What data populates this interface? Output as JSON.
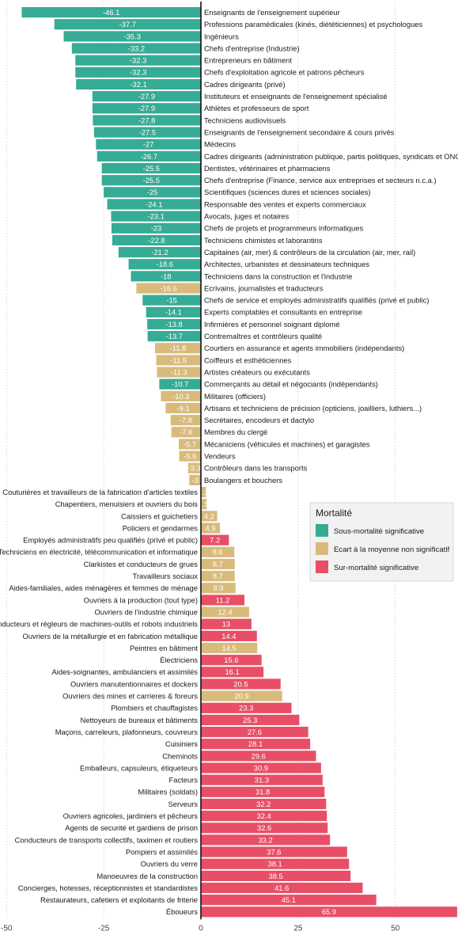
{
  "chart_data": {
    "type": "bar",
    "orientation": "horizontal",
    "xlim": [
      -50,
      65.9
    ],
    "x_ticks": [
      -50,
      -25,
      0,
      25,
      50
    ],
    "grid": "vertical dotted",
    "legend_position": "right",
    "legend": {
      "title": "Mortalité",
      "entries": [
        {
          "key": "sous",
          "label": "Sous-mortalité significative",
          "color": "#36ab95"
        },
        {
          "key": "ecart",
          "label": "Ecart à la moyenne non significatif",
          "color": "#d8bb7b"
        },
        {
          "key": "sur",
          "label": "Sur-mortalité significative",
          "color": "#e84f66"
        }
      ]
    },
    "bars": [
      {
        "label": "Enseignants de l'enseignement supérieur",
        "value": -46.1,
        "group": "sous"
      },
      {
        "label": "Professions paramédicales (kinés, diététiciennes) et psychologues",
        "value": -37.7,
        "group": "sous"
      },
      {
        "label": "Ingénieurs",
        "value": -35.3,
        "group": "sous"
      },
      {
        "label": "Chefs d'entreprise (Industrie)",
        "value": -33.2,
        "group": "sous"
      },
      {
        "label": "Entrepreneurs en bâtiment",
        "value": -32.3,
        "group": "sous"
      },
      {
        "label": "Chefs d'exploitation agricole et patrons pêcheurs",
        "value": -32.3,
        "group": "sous"
      },
      {
        "label": "Cadres dirigeants (privé)",
        "value": -32.1,
        "group": "sous"
      },
      {
        "label": "Instituteurs et enseignants de l'enseignement spécialisé",
        "value": -27.9,
        "group": "sous"
      },
      {
        "label": "Athlètes et professeurs de sport",
        "value": -27.9,
        "group": "sous"
      },
      {
        "label": "Techniciens audiovisuels",
        "value": -27.8,
        "group": "sous"
      },
      {
        "label": "Enseignants de l'enseignement secondaire & cours privés",
        "value": -27.5,
        "group": "sous"
      },
      {
        "label": "Médecins",
        "value": -27,
        "group": "sous"
      },
      {
        "label": "Cadres dirigeants (administration publique, partis politiques, syndicats et ONG)",
        "value": -26.7,
        "group": "sous"
      },
      {
        "label": "Dentistes, vétérinaires et pharmaciens",
        "value": -25.5,
        "group": "sous"
      },
      {
        "label": "Chefs d'entreprise (Finance, service aux entreprises et secteurs n.c.a.)",
        "value": -25.5,
        "group": "sous"
      },
      {
        "label": "Scientifiques (sciences dures et sciences sociales)",
        "value": -25,
        "group": "sous"
      },
      {
        "label": "Responsable des ventes et experts commerciaux",
        "value": -24.1,
        "group": "sous"
      },
      {
        "label": "Avocats, juges et notaires",
        "value": -23.1,
        "group": "sous"
      },
      {
        "label": "Chefs de projets et programmeurs informatiques",
        "value": -23,
        "group": "sous"
      },
      {
        "label": "Techniciens chimistes et laborantins",
        "value": -22.8,
        "group": "sous"
      },
      {
        "label": "Capitaines (air, mer) & contrôleurs de la circulation (air, mer, rail)",
        "value": -21.2,
        "group": "sous"
      },
      {
        "label": "Architectes, urbanistes et dessinateurs techniques",
        "value": -18.6,
        "group": "sous"
      },
      {
        "label": "Techniciens dans la construction et l'industrie",
        "value": -18,
        "group": "sous"
      },
      {
        "label": "Ecrivains, journalistes et traducteurs",
        "value": -16.6,
        "group": "ecart"
      },
      {
        "label": "Chefs de service et employés administratifs qualifiés (privé et public)",
        "value": -15,
        "group": "sous"
      },
      {
        "label": "Experts comptables et consultants en entreprise",
        "value": -14.1,
        "group": "sous"
      },
      {
        "label": "Infirmières et personnel soignant diplomé",
        "value": -13.8,
        "group": "sous"
      },
      {
        "label": "Contremaîtres et contrôleurs qualité",
        "value": -13.7,
        "group": "sous"
      },
      {
        "label": "Courtiers en assurance et agents immobiliers (indépendants)",
        "value": -11.8,
        "group": "ecart"
      },
      {
        "label": "Coiffeurs et esthéticiennes",
        "value": -11.5,
        "group": "ecart"
      },
      {
        "label": "Artistes créateurs ou exécutants",
        "value": -11.3,
        "group": "ecart"
      },
      {
        "label": "Commerçants au détail et négociants (indépendants)",
        "value": -10.7,
        "group": "sous"
      },
      {
        "label": "Militaires (officiers)",
        "value": -10.3,
        "group": "ecart"
      },
      {
        "label": "Artisans et techniciens de précision (opticiens, joailliers, luthiers...)",
        "value": -9.1,
        "group": "ecart"
      },
      {
        "label": "Secrétaires, encodeurs et dactylo",
        "value": -7.8,
        "group": "ecart"
      },
      {
        "label": "Membres du clergé",
        "value": -7.6,
        "group": "ecart"
      },
      {
        "label": "Mécaniciens (véhicules et machines) et garagistes",
        "value": -5.7,
        "group": "ecart"
      },
      {
        "label": "Vendeurs",
        "value": -5.6,
        "group": "ecart"
      },
      {
        "label": "Contrôleurs dans les transports",
        "value": -3.3,
        "group": "ecart"
      },
      {
        "label": "Boulangers et bouchers",
        "value": -3,
        "group": "ecart"
      },
      {
        "label": "Couturières et travailleurs de la fabrication d'articles textiles",
        "value": 1.3,
        "group": "ecart"
      },
      {
        "label": "Chapentiers, menuisiers et ouvriers du bois",
        "value": 1.5,
        "group": "ecart"
      },
      {
        "label": "Caissiers et guichetiers",
        "value": 4.2,
        "group": "ecart"
      },
      {
        "label": "Policiers et gendarmes",
        "value": 4.9,
        "group": "ecart"
      },
      {
        "label": "Employés administratifs peu qualifiés (privé et public)",
        "value": 7.2,
        "group": "sur"
      },
      {
        "label": "Techniciens en électricité, télécommunication et informatique",
        "value": 8.6,
        "group": "ecart"
      },
      {
        "label": "Clarkistes et conducteurs de grues",
        "value": 8.7,
        "group": "ecart"
      },
      {
        "label": "Travailleurs sociaux",
        "value": 8.7,
        "group": "ecart"
      },
      {
        "label": "Aides-familiales, aides ménagères et femmes de ménage",
        "value": 8.9,
        "group": "ecart"
      },
      {
        "label": "Ouvriers à la production (tout type)",
        "value": 11.2,
        "group": "sur"
      },
      {
        "label": "Ouvriers de l'industrie chimique",
        "value": 12.4,
        "group": "ecart"
      },
      {
        "label": "Conducteurs et régleurs de machines-outils et robots industriels",
        "value": 13,
        "group": "sur"
      },
      {
        "label": "Ouvriers de la métallurgie et en fabrication métallique",
        "value": 14.4,
        "group": "sur"
      },
      {
        "label": "Peintres en bâtiment",
        "value": 14.5,
        "group": "ecart"
      },
      {
        "label": "Électriciens",
        "value": 15.6,
        "group": "sur"
      },
      {
        "label": "Aides-soignantes, ambulanciers et assimilés",
        "value": 16.1,
        "group": "sur"
      },
      {
        "label": "Ouvriers manutentionnaires et dockers",
        "value": 20.5,
        "group": "sur"
      },
      {
        "label": "Ouvriers des mines et carrieres & foreurs",
        "value": 20.9,
        "group": "ecart"
      },
      {
        "label": "Plombiers et chauffagistes",
        "value": 23.3,
        "group": "sur"
      },
      {
        "label": "Nettoyeurs de bureaux et bâtiments",
        "value": 25.3,
        "group": "sur"
      },
      {
        "label": "Maçons, carreleurs, plafonneurs, couvreurs",
        "value": 27.6,
        "group": "sur"
      },
      {
        "label": "Cuisiniers",
        "value": 28.1,
        "group": "sur"
      },
      {
        "label": "Cheminots",
        "value": 29.6,
        "group": "sur"
      },
      {
        "label": "Emballeurs, capsuleurs, étiqueteurs",
        "value": 30.9,
        "group": "sur"
      },
      {
        "label": "Facteurs",
        "value": 31.3,
        "group": "sur"
      },
      {
        "label": "Militaires (soldats)",
        "value": 31.8,
        "group": "sur"
      },
      {
        "label": "Serveurs",
        "value": 32.2,
        "group": "sur"
      },
      {
        "label": "Ouvriers agricoles, jardiniers et pêcheurs",
        "value": 32.4,
        "group": "sur"
      },
      {
        "label": "Agents de securité et gardiens de prison",
        "value": 32.6,
        "group": "sur"
      },
      {
        "label": "Conducteurs de transports collectifs, taximen et routiers",
        "value": 33.2,
        "group": "sur"
      },
      {
        "label": "Pompiers et assimilés",
        "value": 37.6,
        "group": "sur"
      },
      {
        "label": "Ouvriers du verre",
        "value": 38.1,
        "group": "sur"
      },
      {
        "label": "Manoeuvres de la construction",
        "value": 38.5,
        "group": "sur"
      },
      {
        "label": "Concierges, hotesses, réceptionnistes et standardistes",
        "value": 41.6,
        "group": "sur"
      },
      {
        "label": "Restaurateurs, cafetiers et exploitants de friterie",
        "value": 45.1,
        "group": "sur"
      },
      {
        "label": "Éboueurs",
        "value": 65.9,
        "group": "sur"
      }
    ]
  }
}
